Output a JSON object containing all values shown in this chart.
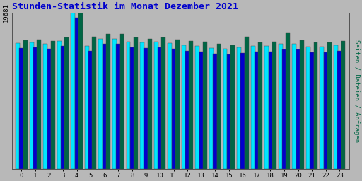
{
  "title": "Stunden-Statistik im Monat Dezember 2021",
  "title_color": "#0000cc",
  "background_color": "#b8b8b8",
  "plot_bg_color": "#b8b8b8",
  "bar_colors": [
    "#00e5ff",
    "#0000cc",
    "#006644"
  ],
  "ytick_label": "19681",
  "ylabel_right": "Seiten / Dateien / Anfragen",
  "ylabel_right_color": "#006644",
  "hours": [
    0,
    1,
    2,
    3,
    4,
    5,
    6,
    7,
    8,
    9,
    10,
    11,
    12,
    13,
    14,
    15,
    16,
    17,
    18,
    19,
    20,
    21,
    22,
    23
  ],
  "seiten": [
    15800,
    15900,
    15700,
    16100,
    19681,
    15500,
    16400,
    16400,
    16000,
    15900,
    16000,
    15800,
    15600,
    15500,
    15200,
    15100,
    15300,
    15500,
    15500,
    15700,
    15700,
    15400,
    15400,
    15600
  ],
  "dateien": [
    15200,
    15300,
    15100,
    15500,
    19000,
    14900,
    15700,
    15700,
    15300,
    15200,
    15300,
    15100,
    14900,
    14800,
    14500,
    14400,
    14600,
    14800,
    14800,
    15000,
    15000,
    14700,
    14700,
    14900
  ],
  "anfragen": [
    16200,
    16300,
    16100,
    16500,
    19681,
    16600,
    17000,
    17000,
    16500,
    16400,
    16500,
    16300,
    16100,
    16000,
    15700,
    15600,
    16600,
    15900,
    16000,
    17200,
    16200,
    15900,
    15900,
    16100
  ],
  "ylim": [
    0,
    19681
  ],
  "bar_width": 0.3,
  "figwidth": 5.12,
  "figheight": 2.56,
  "dpi": 100
}
